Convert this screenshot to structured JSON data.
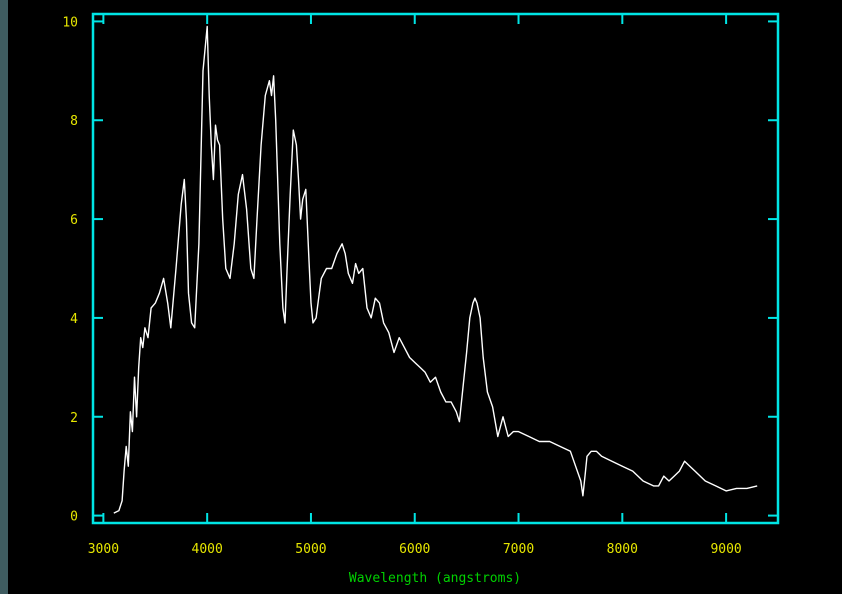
{
  "chart_data": {
    "type": "line",
    "title": "",
    "xlabel": "Wavelength (angstroms)",
    "ylabel": "",
    "xlim": [
      2900,
      9500
    ],
    "ylim": [
      -0.15,
      10.15
    ],
    "grid": false,
    "x_ticks": [
      3000,
      4000,
      5000,
      6000,
      7000,
      8000,
      9000
    ],
    "x_tick_labels": [
      "3000",
      "4000",
      "5000",
      "6000",
      "7000",
      "8000",
      "9000"
    ],
    "y_ticks": [
      0,
      2,
      4,
      6,
      8,
      10
    ],
    "y_tick_labels": [
      "0",
      "2",
      "4",
      "6",
      "8",
      "10"
    ],
    "colors": {
      "background": "#000000",
      "frame": "#00e5e5",
      "tick_labels": "#e6e600",
      "axis_title": "#00d000",
      "line": "#ffffff",
      "page": "#3f5c60"
    },
    "series": [
      {
        "x": [
          3100,
          3150,
          3180,
          3200,
          3220,
          3240,
          3260,
          3280,
          3300,
          3320,
          3340,
          3360,
          3380,
          3400,
          3430,
          3460,
          3500,
          3540,
          3580,
          3620,
          3650,
          3700,
          3750,
          3780,
          3800,
          3820,
          3850,
          3880,
          3920,
          3960,
          4000,
          4020,
          4040,
          4060,
          4080,
          4100,
          4120,
          4150,
          4180,
          4220,
          4260,
          4300,
          4340,
          4380,
          4420,
          4450,
          4480,
          4520,
          4560,
          4600,
          4620,
          4640,
          4660,
          4700,
          4730,
          4750,
          4770,
          4800,
          4830,
          4860,
          4880,
          4900,
          4920,
          4950,
          4980,
          5000,
          5020,
          5050,
          5080,
          5100,
          5150,
          5200,
          5250,
          5300,
          5330,
          5360,
          5400,
          5430,
          5460,
          5500,
          5540,
          5580,
          5620,
          5660,
          5700,
          5750,
          5800,
          5850,
          5900,
          5950,
          6000,
          6050,
          6100,
          6150,
          6200,
          6250,
          6300,
          6350,
          6400,
          6430,
          6460,
          6500,
          6530,
          6560,
          6580,
          6600,
          6630,
          6660,
          6700,
          6750,
          6800,
          6850,
          6900,
          6950,
          7000,
          7100,
          7200,
          7300,
          7400,
          7500,
          7550,
          7600,
          7620,
          7640,
          7660,
          7700,
          7750,
          7800,
          7900,
          8000,
          8100,
          8200,
          8300,
          8350,
          8400,
          8450,
          8500,
          8550,
          8600,
          8650,
          8700,
          8750,
          8800,
          8900,
          9000,
          9100,
          9200,
          9300
        ],
        "values": [
          0.05,
          0.1,
          0.3,
          0.9,
          1.4,
          1.0,
          2.1,
          1.7,
          2.8,
          2.0,
          3.0,
          3.6,
          3.4,
          3.8,
          3.6,
          4.2,
          4.3,
          4.5,
          4.8,
          4.3,
          3.8,
          5.0,
          6.3,
          6.8,
          6.0,
          4.5,
          3.9,
          3.8,
          5.5,
          9.0,
          9.9,
          8.5,
          7.5,
          6.8,
          7.9,
          7.6,
          7.5,
          6.0,
          5.0,
          4.8,
          5.5,
          6.5,
          6.9,
          6.2,
          5.0,
          4.8,
          6.0,
          7.5,
          8.5,
          8.8,
          8.5,
          8.9,
          8.0,
          5.5,
          4.2,
          3.9,
          5.0,
          6.5,
          7.8,
          7.5,
          6.8,
          6.0,
          6.4,
          6.6,
          5.2,
          4.3,
          3.9,
          4.0,
          4.5,
          4.8,
          5.0,
          5.0,
          5.3,
          5.5,
          5.3,
          4.9,
          4.7,
          5.1,
          4.9,
          5.0,
          4.2,
          4.0,
          4.4,
          4.3,
          3.9,
          3.7,
          3.3,
          3.6,
          3.4,
          3.2,
          3.1,
          3.0,
          2.9,
          2.7,
          2.8,
          2.5,
          2.3,
          2.3,
          2.1,
          1.9,
          2.5,
          3.3,
          4.0,
          4.3,
          4.4,
          4.3,
          4.0,
          3.2,
          2.5,
          2.2,
          1.6,
          2.0,
          1.6,
          1.7,
          1.7,
          1.6,
          1.5,
          1.5,
          1.4,
          1.3,
          1.0,
          0.7,
          0.4,
          0.8,
          1.2,
          1.3,
          1.3,
          1.2,
          1.1,
          1.0,
          0.9,
          0.7,
          0.6,
          0.6,
          0.8,
          0.7,
          0.8,
          0.9,
          1.1,
          1.0,
          0.9,
          0.8,
          0.7,
          0.6,
          0.5,
          0.55,
          0.55,
          0.6
        ]
      }
    ]
  }
}
